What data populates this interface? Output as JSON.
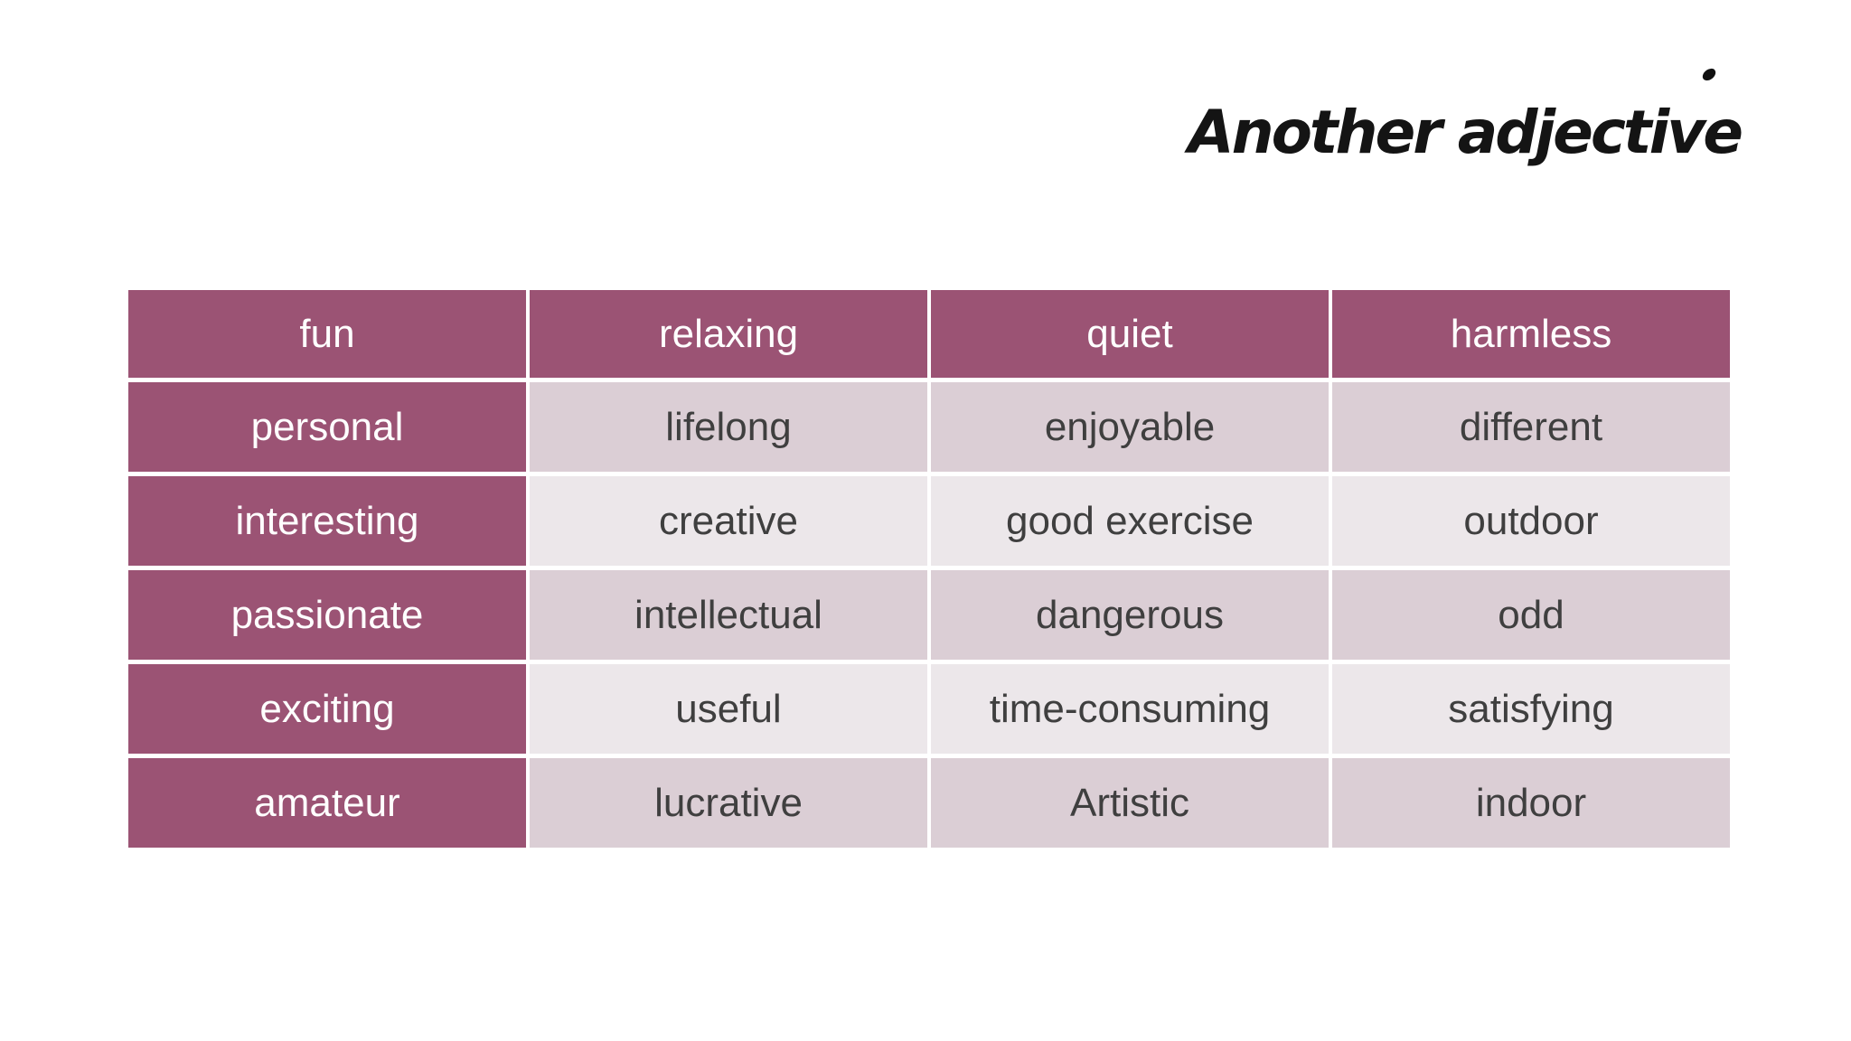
{
  "slide": {
    "title": "Another adjective",
    "decoration": "small-black-dot"
  },
  "table": {
    "headers": [
      "fun",
      "relaxing",
      "quiet",
      "harmless"
    ],
    "rows": [
      [
        "personal",
        "lifelong",
        "enjoyable",
        "different"
      ],
      [
        "interesting",
        "creative",
        "good exercise",
        "outdoor"
      ],
      [
        "passionate",
        "intellectual",
        "dangerous",
        "odd"
      ],
      [
        "exciting",
        "useful",
        "time-consuming",
        "satisfying"
      ],
      [
        "amateur",
        "lucrative",
        "Artistic",
        "indoor"
      ]
    ]
  },
  "colors": {
    "accent_bg": "#9b5374",
    "band_dark_bg": "#dbced5",
    "band_light_bg": "#ece7ea",
    "accent_text": "#ffffff",
    "body_text": "#3f3f3f",
    "title_text": "#141414",
    "page_bg": "#ffffff"
  }
}
